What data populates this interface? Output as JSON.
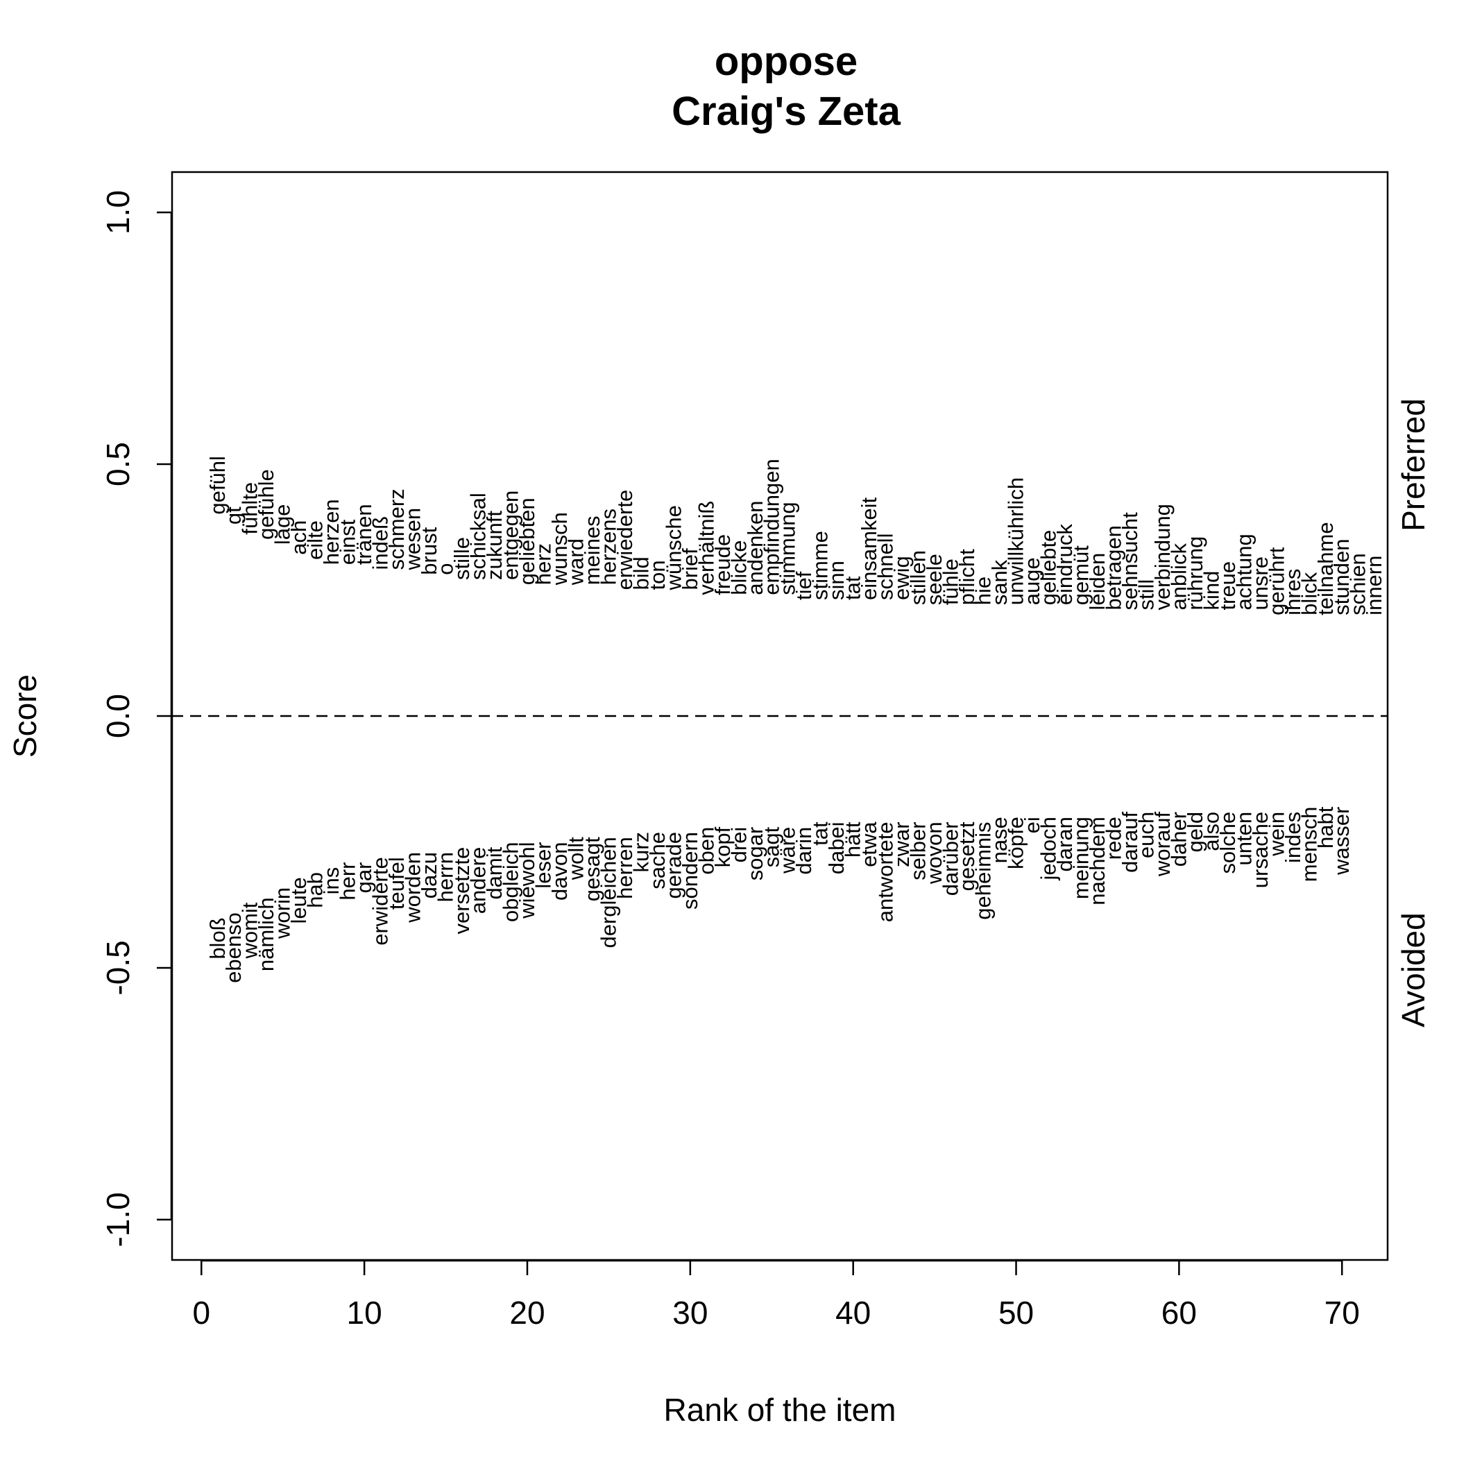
{
  "chart_data": {
    "type": "scatter",
    "title": "oppose",
    "subtitle": "Craig's Zeta",
    "xlabel": "Rank of the item",
    "ylabel": "Score",
    "xlim": [
      -1.8,
      72.8
    ],
    "ylim": [
      -1.08,
      1.08
    ],
    "x_ticks": [
      0,
      10,
      20,
      30,
      40,
      50,
      60,
      70
    ],
    "y_ticks": [
      -1.0,
      -0.5,
      0.0,
      0.5,
      1.0
    ],
    "x_tick_labels": [
      "0",
      "10",
      "20",
      "30",
      "40",
      "50",
      "60",
      "70"
    ],
    "y_tick_labels": [
      "-1.0",
      "-0.5",
      "0.0",
      "0.5",
      "1.0"
    ],
    "reference_line": 0,
    "right_labels": {
      "upper": "Preferred",
      "lower": "Avoided"
    },
    "series": [
      {
        "name": "Preferred",
        "words": [
          "gefühl",
          "gt",
          "fühlte",
          "gefühle",
          "lage",
          "ach",
          "eilte",
          "herzen",
          "einst",
          "tränen",
          "indeß",
          "schmerz",
          "wesen",
          "brust",
          "o",
          "stille",
          "schicksal",
          "zukunft",
          "entgegen",
          "geliebten",
          "herz",
          "wunsch",
          "ward",
          "meines",
          "herzens",
          "erwiederte",
          "bild",
          "ton",
          "wünsche",
          "brief",
          "verhältniß",
          "freude",
          "blicke",
          "andenken",
          "empfindungen",
          "stimmung",
          "tief",
          "stimme",
          "sinn",
          "tat",
          "einsamkeit",
          "schnell",
          "ewig",
          "stillen",
          "seele",
          "fühle",
          "pflicht",
          "hie",
          "sank",
          "unwillkührlich",
          "auge",
          "geliebte",
          "eindruck",
          "gemüt",
          "leiden",
          "betragen",
          "sehnsucht",
          "still",
          "verbindung",
          "anblick",
          "rührung",
          "kind",
          "treue",
          "achtung",
          "unsre",
          "gerührt",
          "ihres",
          "blick",
          "teilnahme",
          "stunden",
          "schien",
          "innern"
        ],
        "values": [
          0.4,
          0.38,
          0.36,
          0.35,
          0.34,
          0.32,
          0.31,
          0.3,
          0.3,
          0.3,
          0.29,
          0.29,
          0.29,
          0.28,
          0.28,
          0.27,
          0.27,
          0.27,
          0.27,
          0.26,
          0.26,
          0.26,
          0.26,
          0.26,
          0.26,
          0.25,
          0.25,
          0.25,
          0.25,
          0.25,
          0.24,
          0.24,
          0.24,
          0.24,
          0.24,
          0.24,
          0.23,
          0.23,
          0.23,
          0.23,
          0.23,
          0.23,
          0.23,
          0.22,
          0.22,
          0.22,
          0.22,
          0.22,
          0.22,
          0.22,
          0.22,
          0.22,
          0.22,
          0.22,
          0.21,
          0.21,
          0.21,
          0.21,
          0.21,
          0.21,
          0.21,
          0.21,
          0.21,
          0.21,
          0.21,
          0.2,
          0.2,
          0.2,
          0.2,
          0.2,
          0.2,
          0.2
        ]
      },
      {
        "name": "Avoided",
        "words": [
          "bloß",
          "ebenso",
          "womit",
          "nämlich",
          "worin",
          "leute",
          "hab",
          "ins",
          "herr",
          "gar",
          "erwiderte",
          "teufel",
          "worden",
          "dazu",
          "herrn",
          "versetzte",
          "andere",
          "damit",
          "obgleich",
          "wiewohl",
          "leser",
          "davon",
          "wollt",
          "gesagt",
          "dergleichen",
          "herren",
          "kurz",
          "sache",
          "gerade",
          "sondern",
          "oben",
          "kopf",
          "drei",
          "sogar",
          "sagt",
          "wäre",
          "darin",
          "tat",
          "dabei",
          "hätt",
          "etwa",
          "antwortete",
          "zwar",
          "selber",
          "wovon",
          "darüber",
          "gesetzt",
          "geheimnis",
          "nase",
          "köpfe",
          "ei",
          "jedoch",
          "daran",
          "meinung",
          "nachdem",
          "rede",
          "darauf",
          "euch",
          "worauf",
          "daher",
          "geld",
          "also",
          "solche",
          "unten",
          "ursache",
          "wein",
          "indes",
          "mensch",
          "habt",
          "wasser"
        ],
        "values": [
          -0.4,
          -0.39,
          -0.37,
          -0.36,
          -0.34,
          -0.32,
          -0.31,
          -0.3,
          -0.29,
          -0.29,
          -0.28,
          -0.28,
          -0.27,
          -0.27,
          -0.27,
          -0.26,
          -0.26,
          -0.26,
          -0.25,
          -0.25,
          -0.25,
          -0.25,
          -0.24,
          -0.24,
          -0.24,
          -0.24,
          -0.23,
          -0.23,
          -0.23,
          -0.23,
          -0.22,
          -0.22,
          -0.22,
          -0.22,
          -0.22,
          -0.22,
          -0.22,
          -0.21,
          -0.21,
          -0.21,
          -0.21,
          -0.21,
          -0.21,
          -0.21,
          -0.21,
          -0.21,
          -0.21,
          -0.21,
          -0.2,
          -0.2,
          -0.2,
          -0.2,
          -0.2,
          -0.2,
          -0.2,
          -0.2,
          -0.19,
          -0.19,
          -0.19,
          -0.19,
          -0.19,
          -0.19,
          -0.19,
          -0.19,
          -0.19,
          -0.19,
          -0.19,
          -0.18,
          -0.18,
          -0.18
        ]
      }
    ]
  }
}
